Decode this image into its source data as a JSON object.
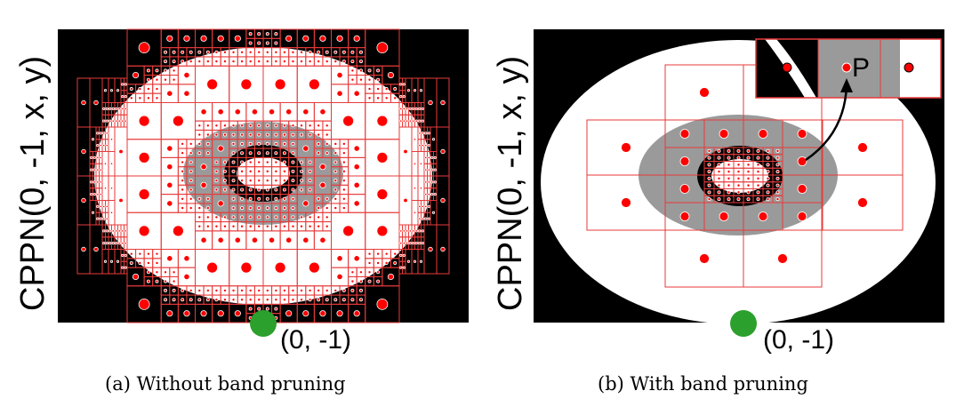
{
  "panels": [
    {
      "id": "a",
      "ylabel": "CPPN(0, -1, x, y)",
      "origin_label": "(0, -1)",
      "caption": "(a) Without band pruning"
    },
    {
      "id": "b",
      "ylabel": "CPPN(0, -1, x, y)",
      "origin_label": "(0, -1)",
      "caption": "(b) With band pruning",
      "inset_label": "P"
    }
  ],
  "colors": {
    "background": "#000000",
    "outer_ring": "#ffffff",
    "inner_band": "#999999",
    "grid_lines": "#e83a3a",
    "points": "#ff0000",
    "origin_marker": "#2ca02c"
  }
}
